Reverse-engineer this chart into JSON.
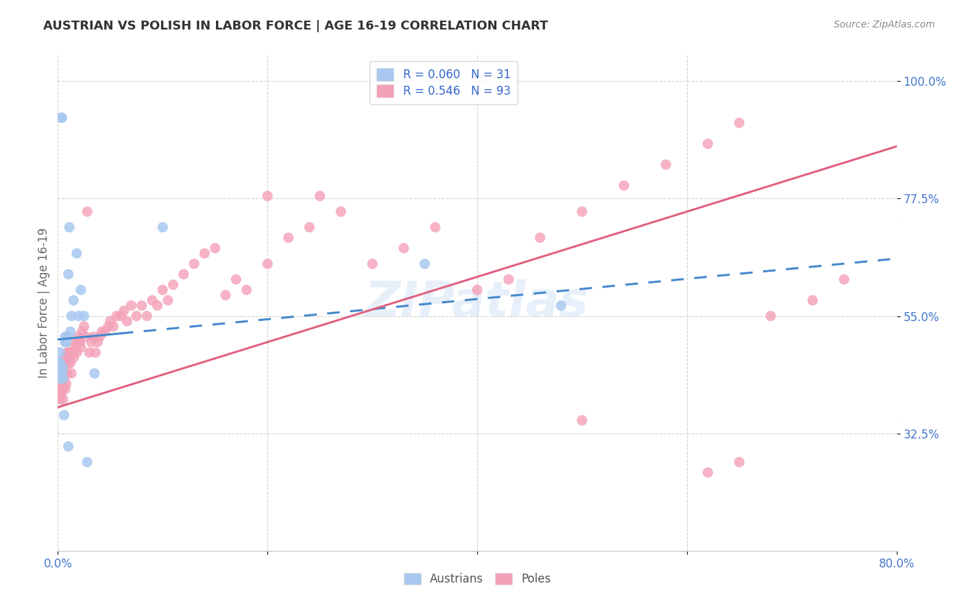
{
  "title": "AUSTRIAN VS POLISH IN LABOR FORCE | AGE 16-19 CORRELATION CHART",
  "source": "Source: ZipAtlas.com",
  "ylabel": "In Labor Force | Age 16-19",
  "xlim": [
    0.0,
    0.8
  ],
  "ylim": [
    0.1,
    1.05
  ],
  "xtick_positions": [
    0.0,
    0.2,
    0.4,
    0.6,
    0.8
  ],
  "xticklabels": [
    "0.0%",
    "",
    "",
    "",
    "80.0%"
  ],
  "ytick_positions": [
    0.325,
    0.55,
    0.775,
    1.0
  ],
  "ytick_labels": [
    "32.5%",
    "55.0%",
    "77.5%",
    "100.0%"
  ],
  "color_austrians": "#a8c8f0",
  "color_poles": "#f4a0b8",
  "color_aus_line": "#4488cc",
  "color_pol_line": "#e06080",
  "color_ticks": "#4477cc",
  "color_title": "#333333",
  "color_source": "#888888",
  "color_ylabel": "#666666",
  "color_legend_text": "#3366cc",
  "color_grid": "#cccccc",
  "watermark_text": "ZIPatlas",
  "watermark_color": "#aaccee",
  "watermark_alpha": 0.28,
  "aus_line_x": [
    0.0,
    0.8
  ],
  "aus_line_y": [
    0.505,
    0.66
  ],
  "pol_line_x": [
    0.0,
    0.8
  ],
  "pol_line_y": [
    0.375,
    0.875
  ],
  "legend_entries": [
    {
      "label": "R = 0.060   N = 31",
      "color": "#a8c8f0"
    },
    {
      "label": "R = 0.546   N = 93",
      "color": "#f4a0b8"
    }
  ],
  "bottom_legend": [
    {
      "label": "Austrians",
      "color": "#a8c8f0"
    },
    {
      "label": "Poles",
      "color": "#f4a0b8"
    }
  ],
  "austrians_x": [
    0.001,
    0.001,
    0.002,
    0.002,
    0.002,
    0.003,
    0.003,
    0.004,
    0.004,
    0.005,
    0.005,
    0.006,
    0.007,
    0.007,
    0.008,
    0.009,
    0.01,
    0.01,
    0.011,
    0.012,
    0.013,
    0.015,
    0.018,
    0.02,
    0.022,
    0.025,
    0.028,
    0.035,
    0.1,
    0.35,
    0.48
  ],
  "austrians_y": [
    0.44,
    0.46,
    0.43,
    0.46,
    0.48,
    0.44,
    0.93,
    0.93,
    0.44,
    0.43,
    0.45,
    0.36,
    0.5,
    0.51,
    0.5,
    0.51,
    0.3,
    0.63,
    0.72,
    0.52,
    0.55,
    0.58,
    0.67,
    0.55,
    0.6,
    0.55,
    0.27,
    0.44,
    0.72,
    0.65,
    0.57
  ],
  "poles_x": [
    0.001,
    0.001,
    0.002,
    0.002,
    0.003,
    0.003,
    0.004,
    0.004,
    0.005,
    0.005,
    0.005,
    0.006,
    0.006,
    0.006,
    0.007,
    0.007,
    0.008,
    0.008,
    0.009,
    0.009,
    0.01,
    0.01,
    0.011,
    0.012,
    0.012,
    0.013,
    0.014,
    0.015,
    0.016,
    0.017,
    0.018,
    0.019,
    0.02,
    0.021,
    0.022,
    0.023,
    0.025,
    0.027,
    0.028,
    0.03,
    0.032,
    0.034,
    0.036,
    0.038,
    0.04,
    0.042,
    0.045,
    0.048,
    0.05,
    0.053,
    0.056,
    0.06,
    0.063,
    0.066,
    0.07,
    0.075,
    0.08,
    0.085,
    0.09,
    0.095,
    0.1,
    0.105,
    0.11,
    0.12,
    0.13,
    0.14,
    0.15,
    0.16,
    0.17,
    0.18,
    0.2,
    0.22,
    0.24,
    0.27,
    0.3,
    0.33,
    0.36,
    0.4,
    0.43,
    0.46,
    0.5,
    0.54,
    0.58,
    0.62,
    0.65,
    0.68,
    0.72,
    0.75,
    0.62,
    0.65,
    0.2,
    0.25,
    0.5
  ],
  "poles_y": [
    0.41,
    0.44,
    0.39,
    0.43,
    0.4,
    0.42,
    0.41,
    0.43,
    0.39,
    0.44,
    0.46,
    0.43,
    0.45,
    0.47,
    0.41,
    0.47,
    0.42,
    0.46,
    0.44,
    0.48,
    0.46,
    0.48,
    0.47,
    0.46,
    0.48,
    0.44,
    0.48,
    0.47,
    0.49,
    0.5,
    0.48,
    0.51,
    0.5,
    0.5,
    0.49,
    0.52,
    0.53,
    0.51,
    0.75,
    0.48,
    0.5,
    0.51,
    0.48,
    0.5,
    0.51,
    0.52,
    0.52,
    0.53,
    0.54,
    0.53,
    0.55,
    0.55,
    0.56,
    0.54,
    0.57,
    0.55,
    0.57,
    0.55,
    0.58,
    0.57,
    0.6,
    0.58,
    0.61,
    0.63,
    0.65,
    0.67,
    0.68,
    0.59,
    0.62,
    0.6,
    0.65,
    0.7,
    0.72,
    0.75,
    0.65,
    0.68,
    0.72,
    0.6,
    0.62,
    0.7,
    0.75,
    0.8,
    0.84,
    0.88,
    0.92,
    0.55,
    0.58,
    0.62,
    0.25,
    0.27,
    0.78,
    0.78,
    0.35
  ]
}
